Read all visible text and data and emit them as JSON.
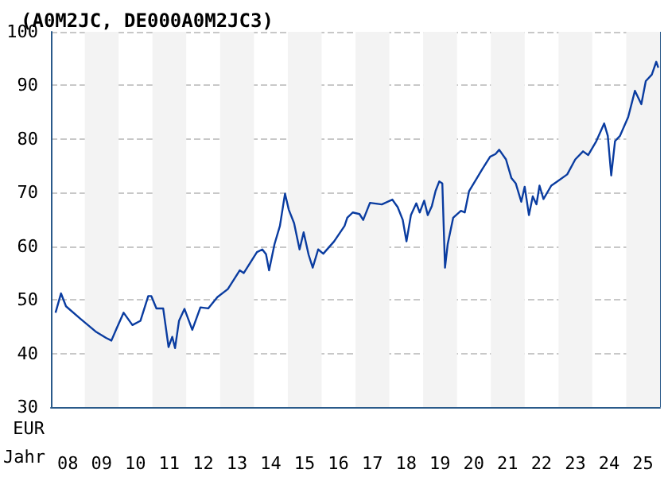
{
  "chart_data": {
    "type": "line",
    "title": "(A0M2JC, DE000A0M2JC3)",
    "xlabel": "Jahr",
    "ylabel": "EUR",
    "x": [
      "2008-02-20",
      "2008-04-19",
      "2008-06-12",
      "2008-11-06",
      "2009-04-27",
      "2009-08-18",
      "2009-10-15",
      "2009-12-09",
      "2010-02-24",
      "2010-05-30",
      "2010-08-25",
      "2010-11-17",
      "2010-12-20",
      "2011-02-13",
      "2011-04-27",
      "2011-06-24",
      "2011-08-03",
      "2011-09-02",
      "2011-10-15",
      "2011-12-13",
      "2012-03-06",
      "2012-06-02",
      "2012-08-25",
      "2012-12-02",
      "2013-03-25",
      "2013-07-31",
      "2013-09-13",
      "2014-02-02",
      "2014-04-01",
      "2014-05-11",
      "2014-06-13",
      "2014-08-11",
      "2014-10-08",
      "2014-12-02",
      "2015-01-12",
      "2015-03-10",
      "2015-05-08",
      "2015-06-21",
      "2015-08-14",
      "2015-09-27",
      "2015-11-25",
      "2016-01-19",
      "2016-05-15",
      "2016-09-05",
      "2016-10-04",
      "2016-12-02",
      "2017-02-13",
      "2017-03-25",
      "2017-06-06",
      "2017-10-12",
      "2018-02-02",
      "2018-04-01",
      "2018-05-26",
      "2018-07-05",
      "2018-08-22",
      "2018-10-19",
      "2018-11-25",
      "2019-01-12",
      "2019-02-20",
      "2019-04-05",
      "2019-05-15",
      "2019-06-24",
      "2019-07-27",
      "2019-08-25",
      "2019-09-23",
      "2019-11-21",
      "2020-02-13",
      "2020-03-25",
      "2020-05-11",
      "2020-08-03",
      "2020-10-01",
      "2020-12-24",
      "2021-02-20",
      "2021-04-01",
      "2021-06-13",
      "2021-08-11",
      "2021-09-27",
      "2021-11-25",
      "2022-01-01",
      "2022-02-16",
      "2022-03-29",
      "2022-05-08",
      "2022-06-10",
      "2022-07-23",
      "2022-10-15",
      "2022-12-13",
      "2023-04-05",
      "2023-07-01",
      "2023-09-23",
      "2023-11-17",
      "2024-02-13",
      "2024-05-08",
      "2024-06-16",
      "2024-07-23",
      "2024-09-02",
      "2024-10-26",
      "2025-01-22",
      "2025-04-05",
      "2025-06-13",
      "2025-07-31",
      "2025-10-04",
      "2025-11-21",
      "2025-12-13"
    ],
    "series": [
      {
        "color": "#0a3ca0",
        "values": [
          47.6,
          51.2,
          48.8,
          46.6,
          44.1,
          42.9,
          42.4,
          44.6,
          47.6,
          45.3,
          46.1,
          50.7,
          50.7,
          48.4,
          48.4,
          41.2,
          43.1,
          41.0,
          46.1,
          48.3,
          44.4,
          48.6,
          48.4,
          50.5,
          52.0,
          55.5,
          55.0,
          58.9,
          59.4,
          58.5,
          55.5,
          60.4,
          63.8,
          69.8,
          66.8,
          64.3,
          59.4,
          62.6,
          58.4,
          56.0,
          59.4,
          58.6,
          60.9,
          63.8,
          65.3,
          66.3,
          66.0,
          64.9,
          68.1,
          67.8,
          68.7,
          67.3,
          64.9,
          60.9,
          65.8,
          68.0,
          66.3,
          68.5,
          65.8,
          67.5,
          70.3,
          72.1,
          71.7,
          56.0,
          60.4,
          65.3,
          66.6,
          66.3,
          70.3,
          72.7,
          74.4,
          76.7,
          77.2,
          78.0,
          76.2,
          72.7,
          71.7,
          68.3,
          71.1,
          65.8,
          69.3,
          67.8,
          71.3,
          68.8,
          71.3,
          72.0,
          73.4,
          76.2,
          77.7,
          77.0,
          79.6,
          82.9,
          80.6,
          73.2,
          79.6,
          80.6,
          84.1,
          89.0,
          86.5,
          90.8,
          92.0,
          94.4,
          93.3
        ]
      }
    ],
    "xlim": [
      "2008-01-01",
      "2026-01-01"
    ],
    "xticks": [
      {
        "value": "2008-07-01",
        "label": "08"
      },
      {
        "value": "2009-07-01",
        "label": "09"
      },
      {
        "value": "2010-07-01",
        "label": "10"
      },
      {
        "value": "2011-07-01",
        "label": "11"
      },
      {
        "value": "2012-07-01",
        "label": "12"
      },
      {
        "value": "2013-07-01",
        "label": "13"
      },
      {
        "value": "2014-07-01",
        "label": "14"
      },
      {
        "value": "2015-07-01",
        "label": "15"
      },
      {
        "value": "2016-07-01",
        "label": "16"
      },
      {
        "value": "2017-07-01",
        "label": "17"
      },
      {
        "value": "2018-07-01",
        "label": "18"
      },
      {
        "value": "2019-07-01",
        "label": "19"
      },
      {
        "value": "2020-07-01",
        "label": "20"
      },
      {
        "value": "2021-07-01",
        "label": "21"
      },
      {
        "value": "2022-07-01",
        "label": "22"
      },
      {
        "value": "2023-07-01",
        "label": "23"
      },
      {
        "value": "2024-07-01",
        "label": "24"
      },
      {
        "value": "2025-07-01",
        "label": "25"
      }
    ],
    "ylim": [
      30,
      100
    ],
    "yticks": [
      30,
      40,
      50,
      60,
      70,
      80,
      90,
      100
    ],
    "bands": [
      {
        "axis": "x",
        "from": "2009-01-01",
        "to": "2010-01-01",
        "color": "#f3f3f3"
      },
      {
        "axis": "x",
        "from": "2011-01-01",
        "to": "2012-01-01",
        "color": "#f3f3f3"
      },
      {
        "axis": "x",
        "from": "2013-01-01",
        "to": "2014-01-01",
        "color": "#f3f3f3"
      },
      {
        "axis": "x",
        "from": "2015-01-01",
        "to": "2016-01-01",
        "color": "#f3f3f3"
      },
      {
        "axis": "x",
        "from": "2017-01-01",
        "to": "2018-01-01",
        "color": "#f3f3f3"
      },
      {
        "axis": "x",
        "from": "2019-01-01",
        "to": "2020-01-01",
        "color": "#f3f3f3"
      },
      {
        "axis": "x",
        "from": "2021-01-01",
        "to": "2022-01-01",
        "color": "#f3f3f3"
      },
      {
        "axis": "x",
        "from": "2023-01-01",
        "to": "2024-01-01",
        "color": "#f3f3f3"
      },
      {
        "axis": "x",
        "from": "2025-01-01",
        "to": "2026-01-01",
        "color": "#f3f3f3"
      }
    ],
    "grid": "y",
    "marker": "none",
    "line_style": "solid"
  }
}
